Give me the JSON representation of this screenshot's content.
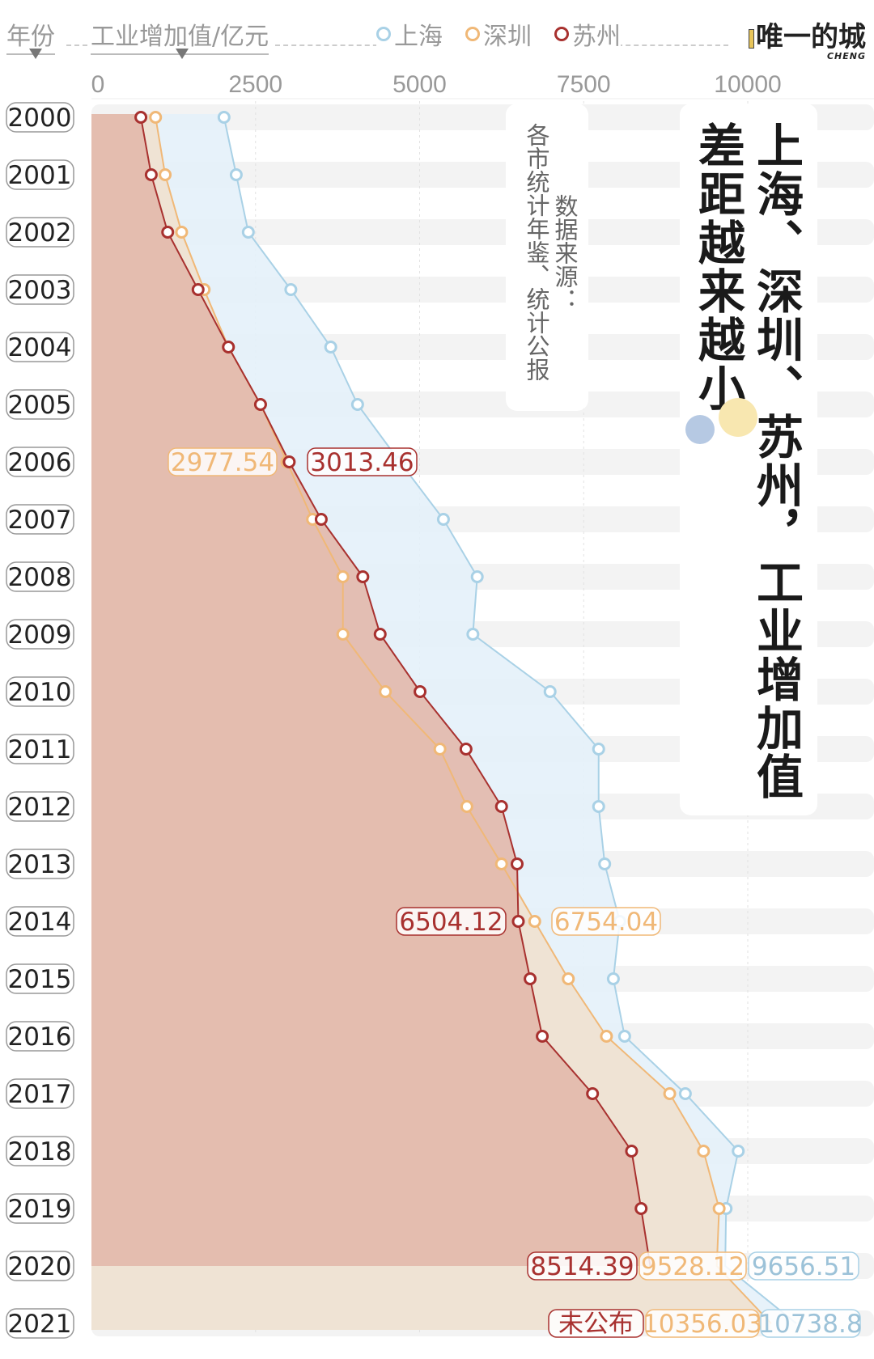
{
  "header": {
    "year_label": "年份",
    "value_label": "工业增加值/亿元",
    "legend": [
      {
        "name": "上海",
        "color": "#a9d1e6"
      },
      {
        "name": "深圳",
        "color": "#f0b877"
      },
      {
        "name": "苏州",
        "color": "#a8312f"
      }
    ],
    "logo": "唯一的城",
    "logo_sub": "CHENG"
  },
  "title": {
    "line1": "上海、深圳、苏州，工业增加值",
    "line2": "差距越来越小"
  },
  "source": {
    "label": "数据来源：",
    "text": "各市统计年鉴、统计公报"
  },
  "chart_data": {
    "type": "area",
    "orientation": "horizontal",
    "categories": [
      "2000",
      "2001",
      "2002",
      "2003",
      "2004",
      "2005",
      "2006",
      "2007",
      "2008",
      "2009",
      "2010",
      "2011",
      "2012",
      "2013",
      "2014",
      "2015",
      "2016",
      "2017",
      "2018",
      "2019",
      "2020",
      "2021"
    ],
    "xlim": [
      0,
      12000
    ],
    "xticks": [
      "0",
      "2500",
      "5000",
      "7500",
      "10000"
    ],
    "xlabel": "工业增加值/亿元",
    "ylabel": "年份",
    "grid": true,
    "series": [
      {
        "name": "上海",
        "color": "#a9d1e6",
        "fill": "#e4f1f9",
        "values": [
          2020,
          2206,
          2390,
          3038,
          3646,
          4055,
          4700,
          5363,
          5878,
          5812,
          6988,
          7728,
          7728,
          7820,
          8050,
          7952,
          8124,
          9049,
          9855,
          9670,
          9656.51,
          10738.8
        ]
      },
      {
        "name": "深圳",
        "color": "#f0b877",
        "fill": "#efe1cf",
        "values": [
          977,
          1123,
          1374,
          1717,
          2087,
          2576,
          2977.54,
          3369,
          3831,
          3831,
          4478,
          5310,
          5720,
          6248,
          6754.04,
          7266,
          7847,
          8811,
          9326,
          9564,
          9528.12,
          10356.03
        ]
      },
      {
        "name": "苏州",
        "color": "#a8312f",
        "fill": "#e2b8ab",
        "values": [
          753,
          911,
          1162,
          1625,
          2087,
          2576,
          3013.46,
          3501,
          4135,
          4399,
          5007,
          5707,
          6248,
          6486,
          6504.12,
          6684,
          6869,
          7635,
          8230,
          8375,
          8514.39,
          null
        ]
      }
    ],
    "annotations": [
      {
        "year": "2006",
        "series": "深圳",
        "text": "2977.54"
      },
      {
        "year": "2006",
        "series": "苏州",
        "text": "3013.46"
      },
      {
        "year": "2014",
        "series": "苏州",
        "text": "6504.12"
      },
      {
        "year": "2014",
        "series": "深圳",
        "text": "6754.04"
      },
      {
        "year": "2020",
        "series": "苏州",
        "text": "8514.39"
      },
      {
        "year": "2020",
        "series": "深圳",
        "text": "9528.12"
      },
      {
        "year": "2020",
        "series": "上海",
        "text": "9656.51"
      },
      {
        "year": "2021",
        "series": "苏州",
        "text": "未公布"
      },
      {
        "year": "2021",
        "series": "深圳",
        "text": "10356.03"
      },
      {
        "year": "2021",
        "series": "上海",
        "text": "10738.8"
      }
    ]
  }
}
